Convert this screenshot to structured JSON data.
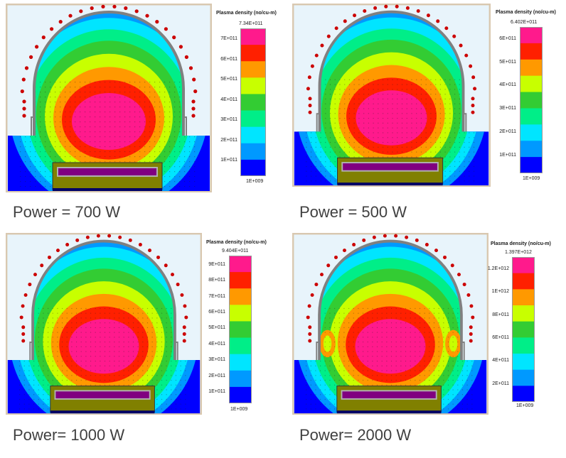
{
  "panels": [
    {
      "caption": "Power = 700 W",
      "colorbar": {
        "title": "Plasma density (no/cu-m)",
        "max_label": "7.34E+011",
        "min_label": "1E+009",
        "ticks": [
          "7E+011",
          "6E+011",
          "5E+011",
          "4E+011",
          "3E+011",
          "2E+011",
          "1E+011"
        ]
      },
      "coil_dots": true,
      "hot_side_lobes": false
    },
    {
      "caption": "Power = 500 W",
      "colorbar": {
        "title": "Plasma density (no/cu-m)",
        "max_label": "6.402E+011",
        "min_label": "1E+009",
        "ticks": [
          "6E+011",
          "5E+011",
          "4E+011",
          "3E+011",
          "2E+011",
          "1E+011"
        ]
      },
      "coil_dots": true,
      "hot_side_lobes": false
    },
    {
      "caption": "Power= 1000 W",
      "colorbar": {
        "title": "Plasma density (no/cu-m)",
        "max_label": "9.404E+011",
        "min_label": "1E+009",
        "ticks": [
          "9E+011",
          "8E+011",
          "7E+011",
          "6E+011",
          "5E+011",
          "4E+011",
          "3E+011",
          "2E+011",
          "1E+011"
        ]
      },
      "coil_dots": true,
      "hot_side_lobes": false
    },
    {
      "caption": "Power= 2000 W",
      "colorbar": {
        "title": "Plasma density (no/cu-m)",
        "max_label": "1.397E+012",
        "min_label": "1E+009",
        "ticks": [
          "1.2E+012",
          "1E+012",
          "8E+011",
          "6E+011",
          "4E+011",
          "2E+011"
        ]
      },
      "coil_dots": true,
      "hot_side_lobes": true
    }
  ],
  "colors": {
    "band_colors": [
      "#ff1a8c",
      "#ff2000",
      "#ff9900",
      "#c8ff00",
      "#33cc33",
      "#00ee88",
      "#00e5ff",
      "#0099ff",
      "#0000ff"
    ],
    "frame": "#d9c8b0",
    "dome": "#808080",
    "chamber_bg": "#e8f4fb",
    "pedestal": "#808000",
    "wafer": "#800080",
    "coil": "#cc0000"
  }
}
